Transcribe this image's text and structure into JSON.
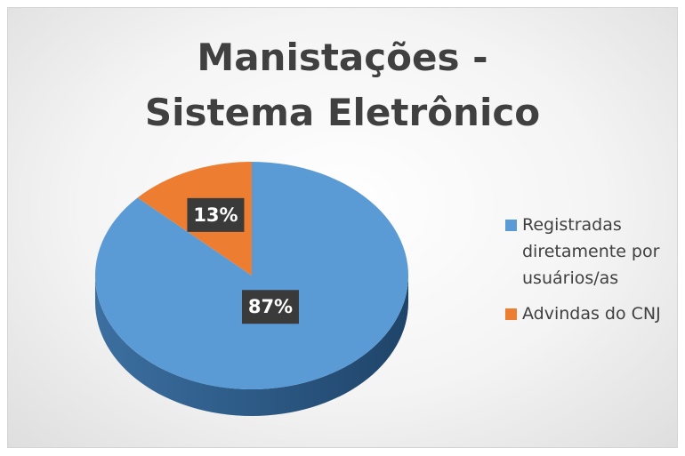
{
  "chart_data": {
    "type": "pie",
    "title": "Manistações - Sistema Eletrônico",
    "categories": [
      "Registradas diretamente por usuários/as",
      "Advindas do CNJ"
    ],
    "values": [
      87,
      13
    ],
    "value_labels": [
      "87%",
      "13%"
    ],
    "colors": [
      "#5b9bd5",
      "#ed7d31"
    ],
    "legend": "right"
  }
}
